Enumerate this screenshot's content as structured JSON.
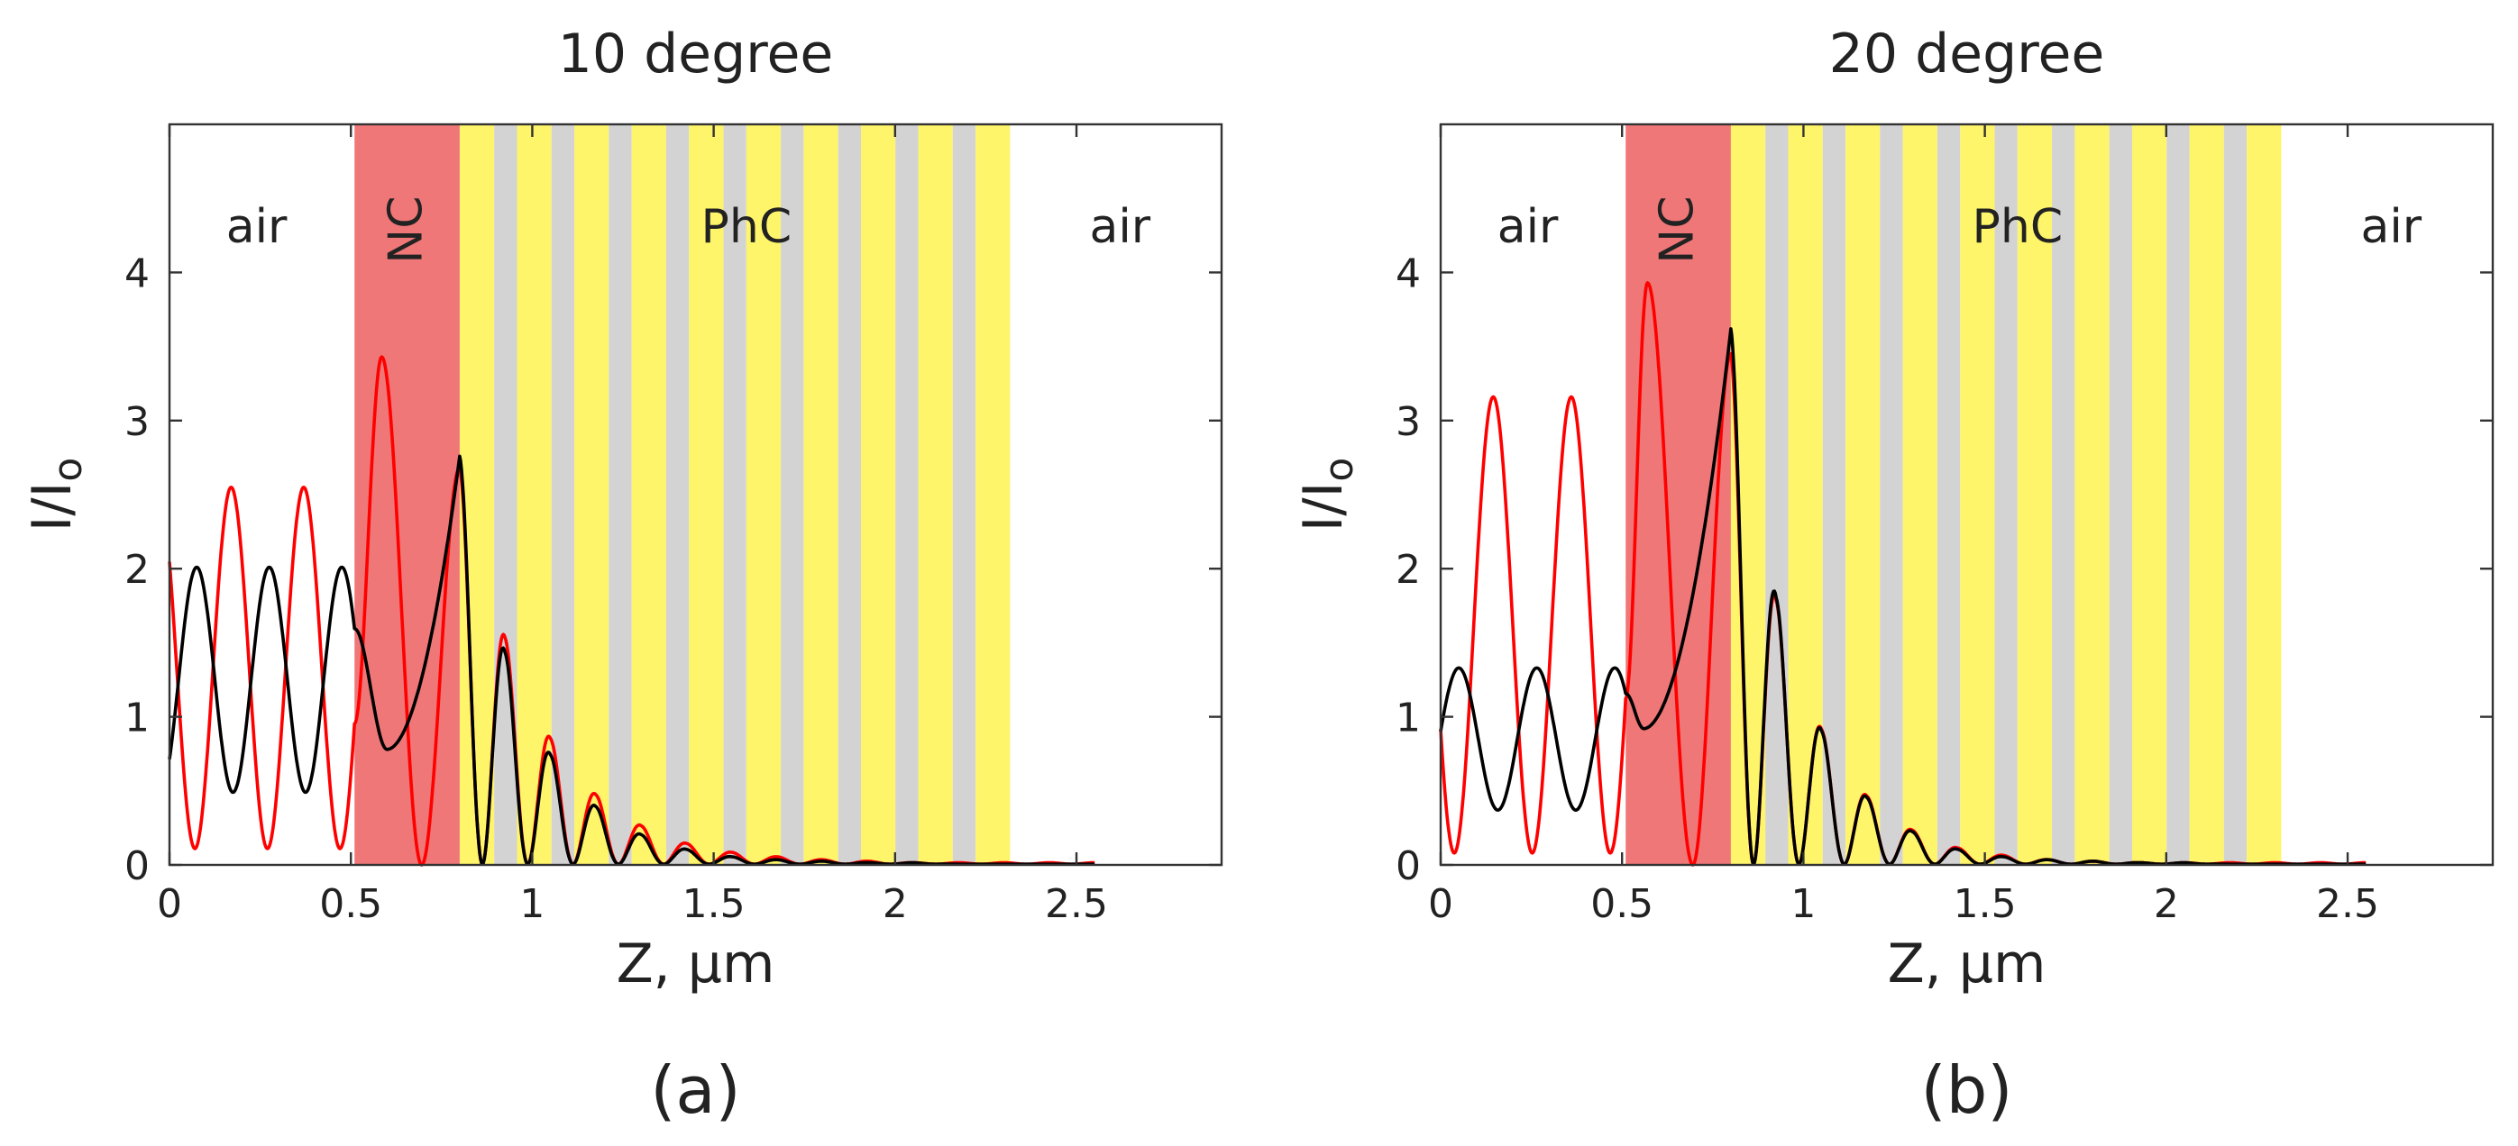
{
  "figure": {
    "panel_labels": [
      "(a)",
      "(b)"
    ]
  },
  "chart_data": [
    {
      "type": "line",
      "title": "10 degree",
      "xlabel": "Z, μm",
      "ylabel": "I/I",
      "ylabel_sub": "o",
      "xlim": [
        0,
        2.9
      ],
      "ylim": [
        0,
        5
      ],
      "xticks": [
        0,
        0.5,
        1,
        1.5,
        2,
        2.5
      ],
      "xtick_labels": [
        "0",
        "0.5",
        "1",
        "1.5",
        "2",
        "2.5"
      ],
      "yticks": [
        0,
        1,
        2,
        3,
        4
      ],
      "ytick_labels": [
        "0",
        "1",
        "2",
        "3",
        "4"
      ],
      "regions": [
        {
          "label": "air",
          "x_center": 0.24,
          "y": 4.3
        },
        {
          "label": "NC",
          "x_start": 0.51,
          "x_end": 0.8,
          "y": 4.3,
          "rotated": true,
          "color": "#f07777"
        },
        {
          "label": "PhC",
          "x_start": 0.8,
          "x_end": 2.38,
          "y": 4.3
        },
        {
          "label": "air",
          "x_center": 2.62,
          "y": 4.3
        }
      ],
      "phc_layers": {
        "start": 0.8,
        "count": 10,
        "yellow_width": 0.095,
        "gray_width": 0.063,
        "yellow": "#fff56a",
        "gray": "#d3d3d3"
      },
      "series": [
        {
          "name": "red",
          "color": "#ff0000",
          "air": {
            "mean": 1.33,
            "amp": 1.22,
            "period": 0.2,
            "phase_at": 0.17
          },
          "nc": {
            "x_end": 0.8,
            "peak": 3.43,
            "peak_x": 0.585,
            "min": 0.0,
            "min_x": 0.695,
            "end": 2.68
          },
          "decay": {
            "x_end": 2.55,
            "peaks": [
              2.68,
              1.53,
              0.85,
              0.47,
              0.26,
              0.14,
              0.08,
              0.05,
              0.03,
              0.02,
              0.01,
              0.01,
              0.01,
              0.01
            ]
          }
        },
        {
          "name": "black",
          "color": "#000000",
          "air": {
            "mean": 1.25,
            "amp": 0.76,
            "period": 0.2,
            "phase_at": 0.075
          },
          "nc": {
            "x_end": 0.8,
            "min": 0.78,
            "min_x": 0.6,
            "end": 2.76
          },
          "decay": {
            "x_end": 2.55,
            "peaks": [
              2.76,
              1.43,
              0.74,
              0.39,
              0.2,
              0.1,
              0.05,
              0.03,
              0.02,
              0.01,
              0.01,
              0.0,
              0.0,
              0.0
            ]
          }
        }
      ]
    },
    {
      "type": "line",
      "title": "20 degree",
      "xlabel": "Z, μm",
      "ylabel": "I/I",
      "ylabel_sub": "o",
      "xlim": [
        0,
        2.9
      ],
      "ylim": [
        0,
        5
      ],
      "xticks": [
        0,
        0.5,
        1,
        1.5,
        2,
        2.5
      ],
      "xtick_labels": [
        "0",
        "0.5",
        "1",
        "1.5",
        "2",
        "2.5"
      ],
      "yticks": [
        0,
        1,
        2,
        3,
        4
      ],
      "ytick_labels": [
        "0",
        "1",
        "2",
        "3",
        "4"
      ],
      "regions": [
        {
          "label": "air",
          "x_center": 0.24,
          "y": 4.3
        },
        {
          "label": "NC",
          "x_start": 0.51,
          "x_end": 0.8,
          "y": 4.3,
          "rotated": true,
          "color": "#f07777"
        },
        {
          "label": "PhC",
          "x_start": 0.8,
          "x_end": 2.38,
          "y": 4.3
        },
        {
          "label": "air",
          "x_center": 2.62,
          "y": 4.3
        }
      ],
      "phc_layers": {
        "start": 0.8,
        "count": 10,
        "yellow_width": 0.095,
        "gray_width": 0.063,
        "yellow": "#fff56a",
        "gray": "#d3d3d3"
      },
      "series": [
        {
          "name": "red",
          "color": "#ff0000",
          "air": {
            "mean": 1.62,
            "amp": 1.54,
            "period": 0.215,
            "phase_at": 0.145
          },
          "nc": {
            "x_end": 0.8,
            "peak": 3.93,
            "peak_x": 0.57,
            "min": 0.0,
            "min_x": 0.695,
            "end": 3.45
          },
          "decay": {
            "x_end": 2.55,
            "peaks": [
              3.45,
              1.78,
              0.91,
              0.46,
              0.23,
              0.11,
              0.06,
              0.03,
              0.02,
              0.01,
              0.01,
              0.01,
              0.01,
              0.01
            ]
          }
        },
        {
          "name": "black",
          "color": "#000000",
          "air": {
            "mean": 0.85,
            "amp": 0.48,
            "period": 0.215,
            "phase_at": 0.05
          },
          "nc": {
            "x_end": 0.8,
            "min": 0.92,
            "min_x": 0.56,
            "end": 3.62
          },
          "decay": {
            "x_end": 2.55,
            "peaks": [
              3.62,
              1.8,
              0.9,
              0.45,
              0.22,
              0.1,
              0.05,
              0.03,
              0.02,
              0.01,
              0.01,
              0.0,
              0.0,
              0.0
            ]
          }
        }
      ]
    }
  ]
}
